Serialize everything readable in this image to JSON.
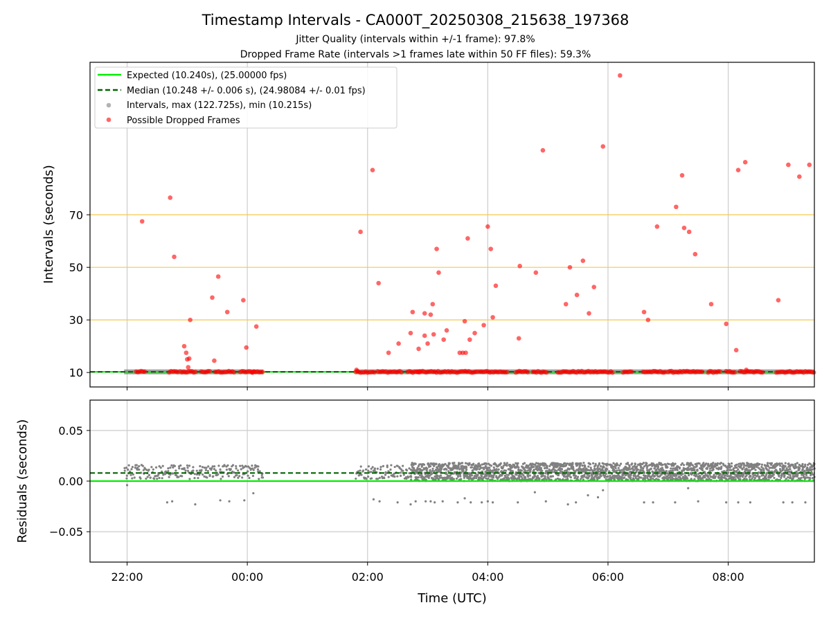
{
  "chart_data": [
    {
      "type": "scatter",
      "title": "Timestamp Intervals - CA000T_20250308_215638_197368",
      "subtitles": [
        "Jitter Quality (intervals within +/-1 frame): 97.8%",
        "Dropped Frame Rate (intervals >1 frames late within 50 FF files): 59.3%"
      ],
      "ylabel": "Intervals (seconds)",
      "xlim": [
        "21:23",
        "09:26"
      ],
      "ylim": [
        4.5,
        128
      ],
      "yticks": [
        10,
        30,
        50,
        70
      ],
      "hlines_gold": [
        30,
        50,
        70
      ],
      "grid": "x",
      "legend_position": "upper-left",
      "legend": [
        "Expected (10.240s), (25.00000 fps)",
        "Median (10.248 +/- 0.006 s), (24.98084 +/- 0.01 fps)",
        "Intervals, max (122.725s), min (10.215s)",
        "Possible Dropped Frames"
      ],
      "expected_interval": 10.24,
      "median_interval": 10.248,
      "baseline_segments": [
        [
          "21:57",
          "00:16"
        ],
        [
          "01:48",
          "09:26"
        ]
      ],
      "dropped_frames": [
        {
          "x": "22:15",
          "y": 67.5
        },
        {
          "x": "22:43",
          "y": 76.5
        },
        {
          "x": "22:47",
          "y": 54
        },
        {
          "x": "22:57",
          "y": 20
        },
        {
          "x": "22:59",
          "y": 17.5
        },
        {
          "x": "23:00",
          "y": 15
        },
        {
          "x": "23:02",
          "y": 15.3
        },
        {
          "x": "23:01",
          "y": 12
        },
        {
          "x": "23:03",
          "y": 30
        },
        {
          "x": "23:25",
          "y": 38.5
        },
        {
          "x": "23:27",
          "y": 14.5
        },
        {
          "x": "23:31",
          "y": 46.5
        },
        {
          "x": "23:40",
          "y": 33
        },
        {
          "x": "23:56",
          "y": 37.5
        },
        {
          "x": "23:59",
          "y": 19.5
        },
        {
          "x": "00:09",
          "y": 27.5
        },
        {
          "x": "01:53",
          "y": 63.5
        },
        {
          "x": "02:05",
          "y": 87
        },
        {
          "x": "02:11",
          "y": 44
        },
        {
          "x": "02:21",
          "y": 17.5
        },
        {
          "x": "02:31",
          "y": 21
        },
        {
          "x": "02:43",
          "y": 25
        },
        {
          "x": "02:45",
          "y": 33
        },
        {
          "x": "02:51",
          "y": 19
        },
        {
          "x": "02:57",
          "y": 24
        },
        {
          "x": "02:57",
          "y": 32.5
        },
        {
          "x": "03:00",
          "y": 21
        },
        {
          "x": "03:03",
          "y": 32
        },
        {
          "x": "03:05",
          "y": 36
        },
        {
          "x": "03:06",
          "y": 24.5
        },
        {
          "x": "03:09",
          "y": 57
        },
        {
          "x": "03:11",
          "y": 48
        },
        {
          "x": "03:16",
          "y": 22.5
        },
        {
          "x": "03:19",
          "y": 26
        },
        {
          "x": "03:32",
          "y": 17.5
        },
        {
          "x": "03:35",
          "y": 17.5
        },
        {
          "x": "03:37",
          "y": 29.5
        },
        {
          "x": "03:38",
          "y": 17.5
        },
        {
          "x": "03:40",
          "y": 61
        },
        {
          "x": "03:42",
          "y": 22.5
        },
        {
          "x": "03:47",
          "y": 25
        },
        {
          "x": "03:56",
          "y": 28
        },
        {
          "x": "04:00",
          "y": 65.5
        },
        {
          "x": "04:03",
          "y": 57
        },
        {
          "x": "04:05",
          "y": 31
        },
        {
          "x": "04:08",
          "y": 43
        },
        {
          "x": "04:31",
          "y": 23
        },
        {
          "x": "04:32",
          "y": 50.5
        },
        {
          "x": "04:48",
          "y": 48
        },
        {
          "x": "04:55",
          "y": 94.5
        },
        {
          "x": "05:18",
          "y": 36
        },
        {
          "x": "05:22",
          "y": 50
        },
        {
          "x": "05:29",
          "y": 39.5
        },
        {
          "x": "05:35",
          "y": 52.5
        },
        {
          "x": "05:41",
          "y": 32.5
        },
        {
          "x": "05:46",
          "y": 42.5
        },
        {
          "x": "05:55",
          "y": 96
        },
        {
          "x": "06:12",
          "y": 123
        },
        {
          "x": "06:36",
          "y": 33
        },
        {
          "x": "06:40",
          "y": 30
        },
        {
          "x": "06:49",
          "y": 65.5
        },
        {
          "x": "07:08",
          "y": 73
        },
        {
          "x": "07:14",
          "y": 85
        },
        {
          "x": "07:16",
          "y": 65
        },
        {
          "x": "07:21",
          "y": 63.5
        },
        {
          "x": "07:27",
          "y": 55
        },
        {
          "x": "07:43",
          "y": 36
        },
        {
          "x": "07:58",
          "y": 28.5
        },
        {
          "x": "08:08",
          "y": 18.5
        },
        {
          "x": "08:10",
          "y": 87
        },
        {
          "x": "08:17",
          "y": 90
        },
        {
          "x": "08:18",
          "y": 11
        },
        {
          "x": "08:50",
          "y": 37.5
        },
        {
          "x": "09:00",
          "y": 89
        },
        {
          "x": "09:11",
          "y": 84.5
        },
        {
          "x": "09:21",
          "y": 89
        },
        {
          "x": "01:49",
          "y": 11
        }
      ]
    },
    {
      "type": "scatter",
      "ylabel": "Residuals (seconds)",
      "xlabel": "Time (UTC)",
      "xlim": [
        "21:23",
        "09:26"
      ],
      "ylim": [
        -0.08,
        0.08
      ],
      "yticks": [
        0.05,
        0.0,
        -0.05
      ],
      "ytick_labels": [
        "0.05",
        "0.00",
        "−0.05"
      ],
      "xticks": [
        "22:00",
        "00:00",
        "02:00",
        "04:00",
        "06:00",
        "08:00"
      ],
      "grid": "both",
      "expected_residual": 0.0,
      "median_residual": 0.008,
      "residual_bands": [
        {
          "from": "21:57",
          "to": "00:16",
          "y_min": 0.002,
          "y_max": 0.016
        },
        {
          "from": "01:48",
          "to": "02:43",
          "y_min": 0.002,
          "y_max": 0.016
        },
        {
          "from": "02:43",
          "to": "09:26",
          "y_min": 0.0,
          "y_max": 0.018
        }
      ],
      "negative_outliers": [
        {
          "x": "22:00",
          "y": -0.004
        },
        {
          "x": "22:40",
          "y": -0.021
        },
        {
          "x": "22:45",
          "y": -0.02
        },
        {
          "x": "23:08",
          "y": -0.023
        },
        {
          "x": "23:33",
          "y": -0.019
        },
        {
          "x": "23:42",
          "y": -0.02
        },
        {
          "x": "23:57",
          "y": -0.019
        },
        {
          "x": "00:06",
          "y": -0.012
        },
        {
          "x": "02:06",
          "y": -0.018
        },
        {
          "x": "02:12",
          "y": -0.02
        },
        {
          "x": "02:30",
          "y": -0.021
        },
        {
          "x": "02:43",
          "y": -0.023
        },
        {
          "x": "02:48",
          "y": -0.02
        },
        {
          "x": "02:58",
          "y": -0.02
        },
        {
          "x": "03:03",
          "y": -0.02
        },
        {
          "x": "03:07",
          "y": -0.021
        },
        {
          "x": "03:15",
          "y": -0.02
        },
        {
          "x": "03:30",
          "y": -0.021
        },
        {
          "x": "03:37",
          "y": -0.017
        },
        {
          "x": "03:43",
          "y": -0.021
        },
        {
          "x": "03:54",
          "y": -0.021
        },
        {
          "x": "04:00",
          "y": -0.02
        },
        {
          "x": "04:05",
          "y": -0.021
        },
        {
          "x": "04:30",
          "y": -0.021
        },
        {
          "x": "04:47",
          "y": -0.011
        },
        {
          "x": "04:58",
          "y": -0.02
        },
        {
          "x": "05:20",
          "y": -0.023
        },
        {
          "x": "05:28",
          "y": -0.021
        },
        {
          "x": "05:40",
          "y": -0.014
        },
        {
          "x": "05:50",
          "y": -0.016
        },
        {
          "x": "05:55",
          "y": -0.009
        },
        {
          "x": "06:36",
          "y": -0.021
        },
        {
          "x": "06:45",
          "y": -0.021
        },
        {
          "x": "07:07",
          "y": -0.021
        },
        {
          "x": "07:20",
          "y": -0.007
        },
        {
          "x": "07:30",
          "y": -0.02
        },
        {
          "x": "07:58",
          "y": -0.021
        },
        {
          "x": "08:10",
          "y": -0.021
        },
        {
          "x": "08:22",
          "y": -0.021
        },
        {
          "x": "08:55",
          "y": -0.021
        },
        {
          "x": "09:04",
          "y": -0.021
        },
        {
          "x": "09:17",
          "y": -0.021
        }
      ]
    }
  ],
  "colors": {
    "expected": "#00ee00",
    "median": "#006400",
    "intervals": "#808080",
    "dropped": "#ff0000",
    "gold_lines": "#f5c84c",
    "grid": "#cccccc"
  }
}
